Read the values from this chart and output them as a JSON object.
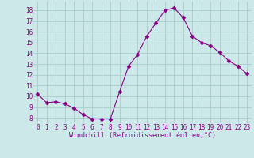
{
  "x": [
    0,
    1,
    2,
    3,
    4,
    5,
    6,
    7,
    8,
    9,
    10,
    11,
    12,
    13,
    14,
    15,
    16,
    17,
    18,
    19,
    20,
    21,
    22,
    23
  ],
  "y": [
    10.2,
    9.4,
    9.5,
    9.3,
    8.9,
    8.3,
    7.9,
    7.9,
    7.9,
    10.4,
    12.8,
    13.9,
    15.6,
    16.8,
    18.0,
    18.2,
    17.3,
    15.6,
    15.0,
    14.7,
    14.1,
    13.3,
    12.8,
    12.1
  ],
  "line_color": "#880088",
  "marker": "D",
  "marker_size": 2.5,
  "bg_color": "#cce8e8",
  "grid_color": "#aacccc",
  "xlabel": "Windchill (Refroidissement éolien,°C)",
  "xlabel_color": "#880088",
  "tick_color": "#880088",
  "ylim": [
    7.5,
    18.8
  ],
  "xlim": [
    -0.5,
    23.5
  ],
  "yticks": [
    8,
    9,
    10,
    11,
    12,
    13,
    14,
    15,
    16,
    17,
    18
  ],
  "xticks": [
    0,
    1,
    2,
    3,
    4,
    5,
    6,
    7,
    8,
    9,
    10,
    11,
    12,
    13,
    14,
    15,
    16,
    17,
    18,
    19,
    20,
    21,
    22,
    23
  ],
  "xtick_labels": [
    "0",
    "1",
    "2",
    "3",
    "4",
    "5",
    "6",
    "7",
    "8",
    "9",
    "10",
    "11",
    "12",
    "13",
    "14",
    "15",
    "16",
    "17",
    "18",
    "19",
    "20",
    "21",
    "22",
    "23"
  ],
  "ytick_labels": [
    "8",
    "9",
    "10",
    "11",
    "12",
    "13",
    "14",
    "15",
    "16",
    "17",
    "18"
  ],
  "tick_fontsize": 5.5,
  "xlabel_fontsize": 6.0
}
